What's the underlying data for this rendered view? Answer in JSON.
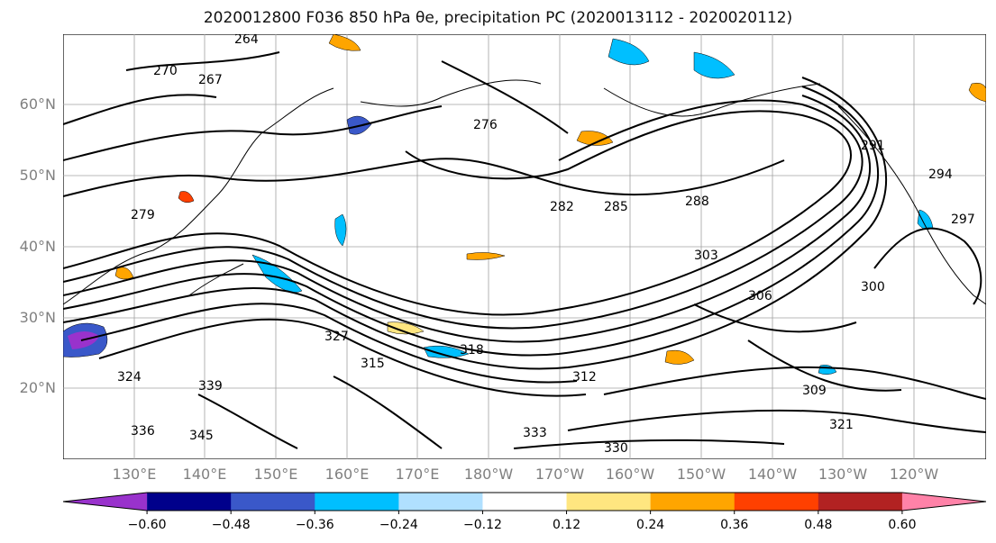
{
  "title": "2020012800 F036 850 hPa θe, precipitation PC (2020013112 - 2020020112)",
  "lat_labels": [
    "60°N",
    "50°N",
    "40°N",
    "30°N",
    "20°N"
  ],
  "lon_labels": [
    "130°E",
    "140°E",
    "150°E",
    "160°E",
    "170°E",
    "180°W",
    "170°W",
    "160°W",
    "150°W",
    "140°W",
    "130°W",
    "120°W"
  ],
  "colorbar": {
    "colors": [
      "#9932cc",
      "#00008b",
      "#3a58c9",
      "#00bfff",
      "#b0e0ff",
      "#ffffff",
      "#ffe680",
      "#ffa500",
      "#ff4000",
      "#b22222",
      "#ff82a8"
    ],
    "tick_labels": [
      "−0.60",
      "−0.48",
      "−0.36",
      "−0.24",
      "−0.12",
      "0.12",
      "0.24",
      "0.36",
      "0.48",
      "0.60"
    ],
    "extend": "both"
  },
  "contour_labels": [
    "264",
    "267",
    "270",
    "276",
    "279",
    "282",
    "285",
    "288",
    "291",
    "294",
    "297",
    "300",
    "303",
    "306",
    "309",
    "312",
    "315",
    "318",
    "321",
    "324",
    "327",
    "330",
    "333",
    "336",
    "339",
    "345"
  ],
  "map": {
    "lat_range": [
      10,
      70
    ],
    "lon_range_east": [
      120,
      300
    ],
    "coastline_color": "#000000",
    "grid": true
  }
}
